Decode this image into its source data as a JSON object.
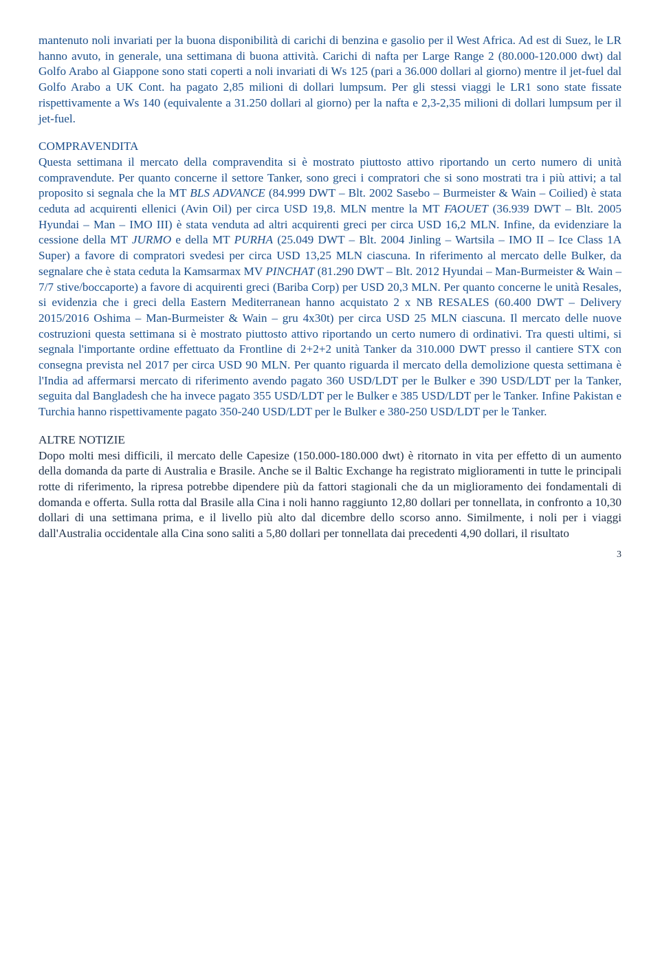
{
  "para1": "mantenuto noli invariati per la buona disponibilità di carichi di benzina e gasolio per il West Africa. Ad est di Suez, le LR hanno avuto, in generale, una settimana di buona attività. Carichi di nafta per Large Range 2 (80.000-120.000 dwt) dal Golfo Arabo al Giappone sono stati coperti a noli invariati di Ws 125 (pari a 36.000 dollari al giorno) mentre il jet-fuel dal Golfo Arabo a UK Cont. ha pagato 2,85 milioni di dollari lumpsum. Per gli stessi viaggi le LR1 sono state fissate rispettivamente a Ws 140 (equivalente a 31.250 dollari al giorno) per la nafta e 2,3-2,35 milioni di dollari lumpsum per il jet-fuel.",
  "heading2": "COMPRAVENDITA",
  "para2a": "Questa settimana il mercato della compravendita si è mostrato piuttosto attivo riportando un certo numero di unità compravendute. Per quanto concerne il settore Tanker, sono greci i compratori che si sono mostrati tra i più attivi; a tal proposito si segnala che la MT ",
  "ship1": "BLS ADVANCE",
  "para2b": " (84.999 DWT – Blt. 2002 Sasebo – Burmeister & Wain – Coilied) è stata ceduta ad acquirenti ellenici (Avin Oil) per circa USD 19,8. MLN mentre la MT ",
  "ship2": "FAOUET",
  "para2c": " (36.939 DWT – Blt. 2005 Hyundai – Man – IMO III) è stata venduta ad altri acquirenti greci per circa USD 16,2 MLN. Infine, da evidenziare la cessione della MT ",
  "ship3": "JURMO",
  "para2d": " e della MT ",
  "ship4": "PURHA",
  "para2e": " (25.049 DWT – Blt. 2004 Jinling – Wartsila – IMO II – Ice Class 1A Super) a favore di compratori svedesi per circa USD 13,25 MLN ciascuna. In riferimento al mercato delle Bulker, da segnalare che è stata ceduta la Kamsarmax MV ",
  "ship5": "PINCHAT",
  "para2f": " (81.290 DWT – Blt. 2012 Hyundai – Man-Burmeister & Wain – 7/7 stive/boccaporte) a favore di acquirenti greci (Bariba Corp) per USD 20,3 MLN. Per quanto concerne le unità Resales, si evidenzia che i greci della Eastern Mediterranean hanno acquistato 2 x NB RESALES (60.400 DWT – Delivery 2015/2016 Oshima – Man-Burmeister & Wain – gru 4x30t) per circa USD 25 MLN ciascuna. Il mercato delle nuove costruzioni questa settimana si è mostrato piuttosto attivo riportando un certo numero di ordinativi. Tra questi ultimi, si segnala l'importante ordine effettuato da Frontline di 2+2+2 unità Tanker da 310.000 DWT presso il cantiere STX con consegna prevista nel 2017 per circa USD 90 MLN. Per quanto riguarda il mercato della demolizione questa settimana è l'India ad affermarsi mercato di riferimento avendo pagato 360 USD/LDT per le Bulker e 390 USD/LDT per la Tanker, seguita dal Bangladesh che ha invece pagato 355 USD/LDT per le Bulker e 385 USD/LDT per le Tanker. Infine Pakistan e Turchia hanno rispettivamente pagato 350-240 USD/LDT per le Bulker e 380-250 USD/LDT per le Tanker.",
  "heading3": "ALTRE NOTIZIE",
  "para3": "Dopo molti mesi difficili, il mercato delle Capesize (150.000-180.000 dwt) è ritornato in vita per effetto di un aumento della domanda da parte di Australia e Brasile. Anche se il Baltic Exchange ha registrato miglioramenti in tutte le principali rotte di riferimento, la ripresa potrebbe dipendere più da fattori stagionali che da un miglioramento dei fondamentali di domanda e offerta. Sulla rotta dal Brasile alla Cina i noli hanno raggiunto 12,80 dollari per tonnellata, in confronto a 10,30 dollari di una settimana prima, e il livello più alto dal dicembre dello scorso anno. Similmente, i noli per i viaggi dall'Australia occidentale alla Cina sono saliti a 5,80 dollari per tonnellata dai precedenti 4,90 dollari, il risultato",
  "pageNumber": "3"
}
